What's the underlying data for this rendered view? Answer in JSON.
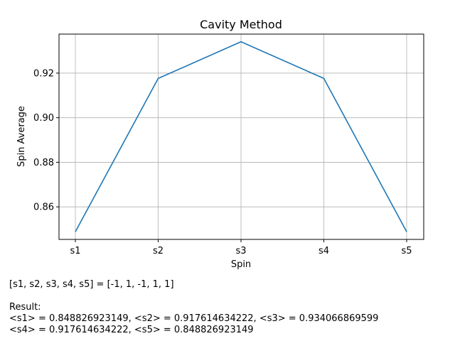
{
  "chart_data": {
    "type": "line",
    "title": "Cavity Method",
    "xlabel": "Spin",
    "ylabel": "Spin Average",
    "categories": [
      "s1",
      "s2",
      "s3",
      "s4",
      "s5"
    ],
    "series": [
      {
        "values": [
          0.848826923149,
          0.917614634222,
          0.934066869599,
          0.917614634222,
          0.848826923149
        ],
        "color": "#1f77b4"
      }
    ],
    "ylim": [
      0.8454,
      0.9375
    ],
    "yticks": [
      0.86,
      0.88,
      0.9,
      0.92
    ],
    "ytick_labels": [
      "0.86",
      "0.88",
      "0.90",
      "0.92"
    ],
    "grid": true
  },
  "notes": {
    "config_line": "[s1, s2, s3, s4, s5] = [-1, 1, -1, 1, 1]",
    "result_heading": "Result:",
    "result_line_1": "<s1> = 0.848826923149, <s2> = 0.917614634222, <s3> = 0.934066869599",
    "result_line_2": "<s4> = 0.917614634222, <s5> = 0.848826923149"
  }
}
